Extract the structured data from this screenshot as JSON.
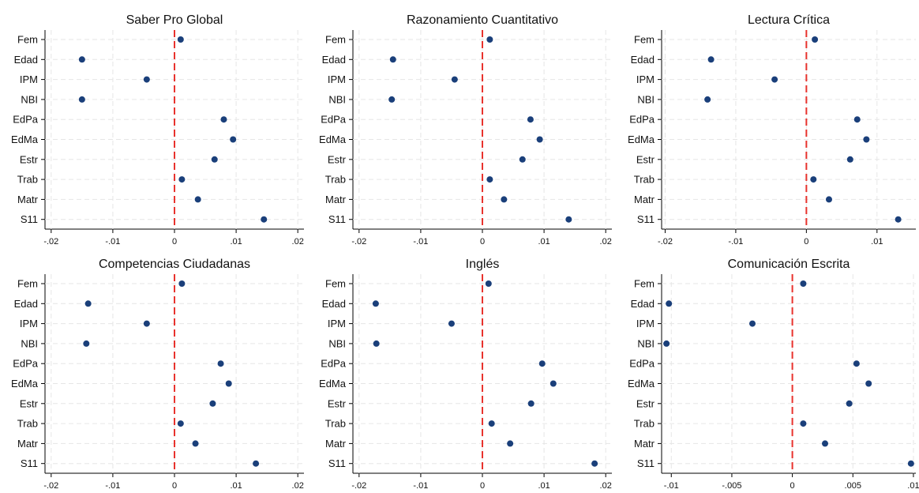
{
  "figure": {
    "background": "#ffffff",
    "point_color": "#1a3f7a",
    "zero_line_color": "#e8322d",
    "grid_color": "#e6e6e6"
  },
  "chart_data": [
    {
      "type": "scatter",
      "title": "Saber Pro Global",
      "categories": [
        "Fem",
        "Edad",
        "IPM",
        "NBI",
        "EdPa",
        "EdMa",
        "Estr",
        "Trab",
        "Matr",
        "S11"
      ],
      "values": [
        0.001,
        -0.015,
        -0.0045,
        -0.015,
        0.008,
        0.0095,
        0.0065,
        0.0012,
        0.0038,
        0.0145
      ],
      "xlim": [
        -0.021,
        0.021
      ],
      "xticks": [
        -0.02,
        -0.01,
        0,
        0.01,
        0.02
      ],
      "xtick_labels": [
        "-.02",
        "-.01",
        "0",
        ".01",
        ".02"
      ],
      "reference_line": 0,
      "grid": true
    },
    {
      "type": "scatter",
      "title": "Razonamiento Cuantitativo",
      "categories": [
        "Fem",
        "Edad",
        "IPM",
        "NBI",
        "EdPa",
        "EdMa",
        "Estr",
        "Trab",
        "Matr",
        "S11"
      ],
      "values": [
        0.0012,
        -0.0145,
        -0.0045,
        -0.0147,
        0.0078,
        0.0093,
        0.0065,
        0.0012,
        0.0035,
        0.014
      ],
      "xlim": [
        -0.021,
        0.021
      ],
      "xticks": [
        -0.02,
        -0.01,
        0,
        0.01,
        0.02
      ],
      "xtick_labels": [
        "-.02",
        "-.01",
        "0",
        ".01",
        ".02"
      ],
      "reference_line": 0,
      "grid": true
    },
    {
      "type": "scatter",
      "title": "Lectura Crítica",
      "categories": [
        "Fem",
        "Edad",
        "IPM",
        "NBI",
        "EdPa",
        "EdMa",
        "Estr",
        "Trab",
        "Matr",
        "S11"
      ],
      "values": [
        0.0012,
        -0.0135,
        -0.0045,
        -0.014,
        0.0072,
        0.0085,
        0.0062,
        0.001,
        0.0032,
        0.013
      ],
      "xlim": [
        -0.0205,
        0.0155
      ],
      "xticks": [
        -0.02,
        -0.01,
        0,
        0.01
      ],
      "xtick_labels": [
        "-.02",
        "-.01",
        "0",
        ".01"
      ],
      "reference_line": 0,
      "grid": true
    },
    {
      "type": "scatter",
      "title": "Competencias Ciudadanas",
      "categories": [
        "Fem",
        "Edad",
        "IPM",
        "NBI",
        "EdPa",
        "EdMa",
        "Estr",
        "Trab",
        "Matr",
        "S11"
      ],
      "values": [
        0.0012,
        -0.014,
        -0.0045,
        -0.0143,
        0.0075,
        0.0088,
        0.0062,
        0.001,
        0.0034,
        0.0132
      ],
      "xlim": [
        -0.021,
        0.021
      ],
      "xticks": [
        -0.02,
        -0.01,
        0,
        0.01,
        0.02
      ],
      "xtick_labels": [
        "-.02",
        "-.01",
        "0",
        ".01",
        ".02"
      ],
      "reference_line": 0,
      "grid": true
    },
    {
      "type": "scatter",
      "title": "Inglés",
      "categories": [
        "Fem",
        "Edad",
        "IPM",
        "NBI",
        "EdPa",
        "EdMa",
        "Estr",
        "Trab",
        "Matr",
        "S11"
      ],
      "values": [
        0.001,
        -0.0173,
        -0.005,
        -0.0172,
        0.0097,
        0.0115,
        0.0079,
        0.0015,
        0.0045,
        0.0182
      ],
      "xlim": [
        -0.021,
        0.021
      ],
      "xticks": [
        -0.02,
        -0.01,
        0,
        0.01,
        0.02
      ],
      "xtick_labels": [
        "-.02",
        "-.01",
        "0",
        ".01",
        ".02"
      ],
      "reference_line": 0,
      "grid": true
    },
    {
      "type": "scatter",
      "title": "Comunicación Escrita",
      "categories": [
        "Fem",
        "Edad",
        "IPM",
        "NBI",
        "EdPa",
        "EdMa",
        "Estr",
        "Trab",
        "Matr",
        "S11"
      ],
      "values": [
        0.0009,
        -0.0102,
        -0.0033,
        -0.0104,
        0.0053,
        0.0063,
        0.0047,
        0.0009,
        0.0027,
        0.0098
      ],
      "xlim": [
        -0.0108,
        0.0102
      ],
      "xticks": [
        -0.01,
        -0.005,
        0,
        0.005,
        0.01
      ],
      "xtick_labels": [
        "-.01",
        "-.005",
        "0",
        ".005",
        ".01"
      ],
      "reference_line": 0,
      "grid": true
    }
  ]
}
